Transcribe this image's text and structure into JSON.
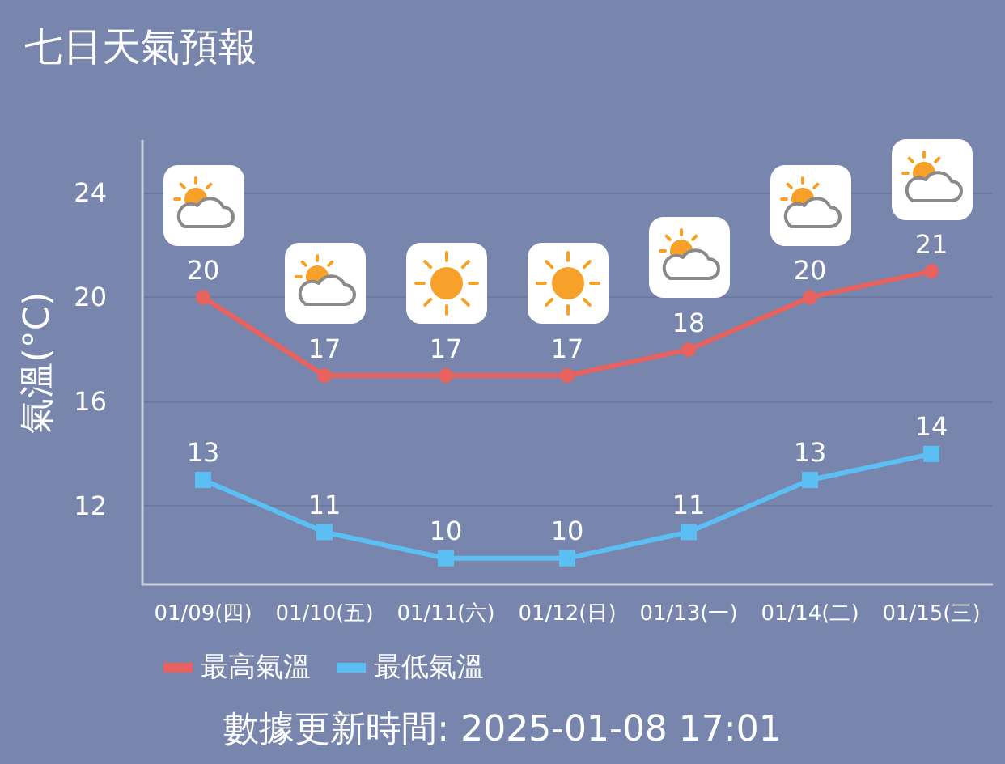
{
  "chart_data": {
    "type": "line",
    "title": "七日天氣預報",
    "ylabel": "氣溫(°C)",
    "categories": [
      "01/09(四)",
      "01/10(五)",
      "01/11(六)",
      "01/12(日)",
      "01/13(一)",
      "01/14(二)",
      "01/15(三)"
    ],
    "series": [
      {
        "name": "最高氣溫",
        "color": "#e8625f",
        "values": [
          20,
          17,
          17,
          17,
          18,
          20,
          21
        ],
        "marker": "circle"
      },
      {
        "name": "最低氣溫",
        "color": "#5cbff4",
        "values": [
          13,
          11,
          10,
          10,
          11,
          13,
          14
        ],
        "marker": "square"
      }
    ],
    "ylim": [
      9,
      26
    ],
    "yticks": [
      12,
      16,
      20,
      24
    ],
    "grid": "y",
    "legend": "bottom",
    "data_labels": true,
    "annotations": [
      "數據更新時間: 2025-01-08 17:01"
    ]
  }
}
